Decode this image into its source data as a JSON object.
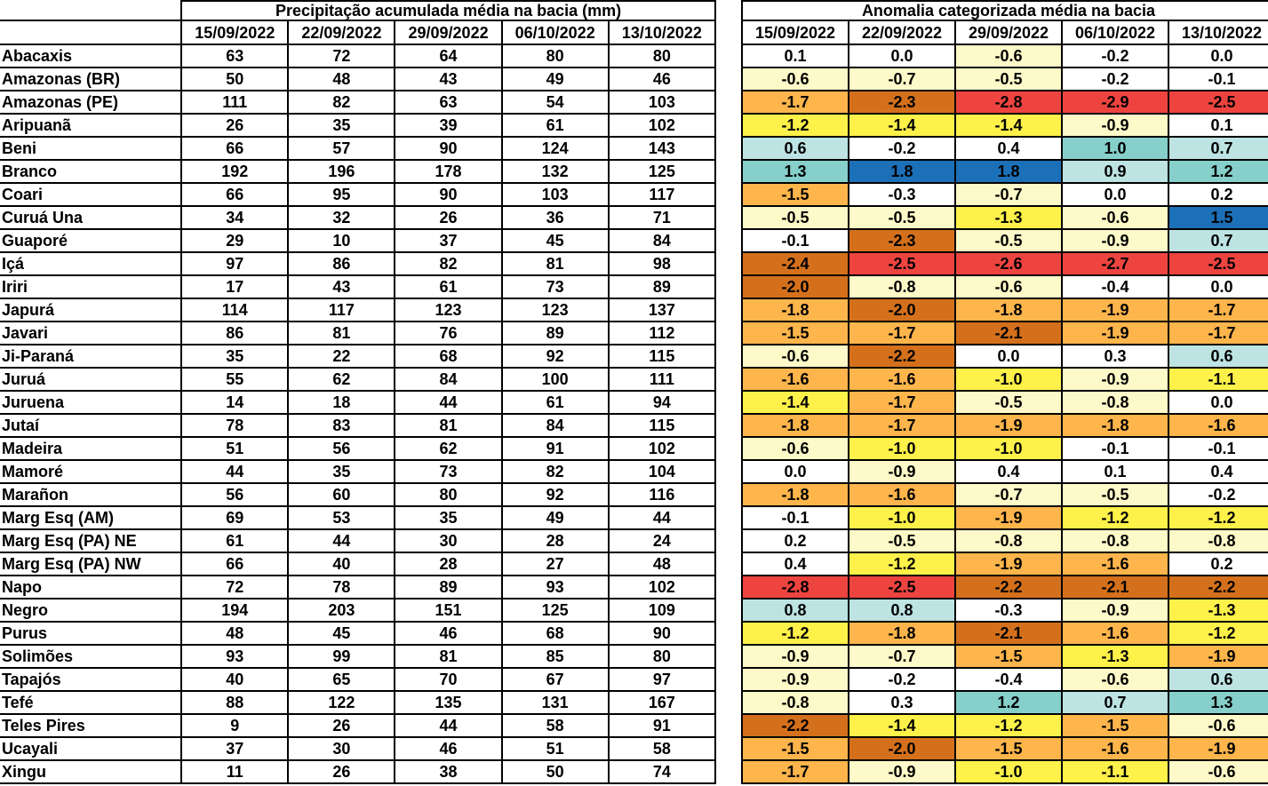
{
  "left_table": {
    "title": "Precipitação acumulada média na bacia (mm)",
    "dates": [
      "15/09/2022",
      "22/09/2022",
      "29/09/2022",
      "06/10/2022",
      "13/10/2022"
    ]
  },
  "right_table": {
    "title": "Anomalia categorizada média na bacia",
    "dates": [
      "15/09/2022",
      "22/09/2022",
      "29/09/2022",
      "06/10/2022",
      "13/10/2022"
    ]
  },
  "color_scale": {
    "dark_blue": "#1c70b8",
    "teal": "#86cfcb",
    "light_teal": "#bde3e2",
    "white": "#ffffff",
    "pale_yellow": "#fef9c8",
    "yellow": "#fef14a",
    "light_orange": "#fdb54c",
    "dark_orange": "#d4701c",
    "red": "#ee4440"
  },
  "rows": [
    {
      "name": "Abacaxis",
      "precip": [
        63,
        72,
        64,
        80,
        80
      ],
      "anom": [
        "0.1",
        "0.0",
        "-0.6",
        "-0.2",
        "0.0"
      ]
    },
    {
      "name": "Amazonas (BR)",
      "precip": [
        50,
        48,
        43,
        49,
        46
      ],
      "anom": [
        "-0.6",
        "-0.7",
        "-0.5",
        "-0.2",
        "-0.1"
      ]
    },
    {
      "name": "Amazonas (PE)",
      "precip": [
        111,
        82,
        63,
        54,
        103
      ],
      "anom": [
        "-1.7",
        "-2.3",
        "-2.8",
        "-2.9",
        "-2.5"
      ]
    },
    {
      "name": "Aripuanã",
      "precip": [
        26,
        35,
        39,
        61,
        102
      ],
      "anom": [
        "-1.2",
        "-1.4",
        "-1.4",
        "-0.9",
        "0.1"
      ]
    },
    {
      "name": "Beni",
      "precip": [
        66,
        57,
        90,
        124,
        143
      ],
      "anom": [
        "0.6",
        "-0.2",
        "0.4",
        "1.0",
        "0.7"
      ]
    },
    {
      "name": "Branco",
      "precip": [
        192,
        196,
        178,
        132,
        125
      ],
      "anom": [
        "1.3",
        "1.8",
        "1.8",
        "0.9",
        "1.2"
      ]
    },
    {
      "name": "Coari",
      "precip": [
        66,
        95,
        90,
        103,
        117
      ],
      "anom": [
        "-1.5",
        "-0.3",
        "-0.7",
        "0.0",
        "0.2"
      ]
    },
    {
      "name": "Curuá Una",
      "precip": [
        34,
        32,
        26,
        36,
        71
      ],
      "anom": [
        "-0.5",
        "-0.5",
        "-1.3",
        "-0.6",
        "1.5"
      ]
    },
    {
      "name": "Guaporé",
      "precip": [
        29,
        10,
        37,
        45,
        84
      ],
      "anom": [
        "-0.1",
        "-2.3",
        "-0.5",
        "-0.9",
        "0.7"
      ]
    },
    {
      "name": "Içá",
      "precip": [
        97,
        86,
        82,
        81,
        98
      ],
      "anom": [
        "-2.4",
        "-2.5",
        "-2.6",
        "-2.7",
        "-2.5"
      ]
    },
    {
      "name": "Iriri",
      "precip": [
        17,
        43,
        61,
        73,
        89
      ],
      "anom": [
        "-2.0",
        "-0.8",
        "-0.6",
        "-0.4",
        "0.0"
      ]
    },
    {
      "name": "Japurá",
      "precip": [
        114,
        117,
        123,
        123,
        137
      ],
      "anom": [
        "-1.8",
        "-2.0",
        "-1.8",
        "-1.9",
        "-1.7"
      ]
    },
    {
      "name": "Javari",
      "precip": [
        86,
        81,
        76,
        89,
        112
      ],
      "anom": [
        "-1.5",
        "-1.7",
        "-2.1",
        "-1.9",
        "-1.7"
      ]
    },
    {
      "name": "Ji-Paraná",
      "precip": [
        35,
        22,
        68,
        92,
        115
      ],
      "anom": [
        "-0.6",
        "-2.2",
        "0.0",
        "0.3",
        "0.6"
      ]
    },
    {
      "name": "Juruá",
      "precip": [
        55,
        62,
        84,
        100,
        111
      ],
      "anom": [
        "-1.6",
        "-1.6",
        "-1.0",
        "-0.9",
        "-1.1"
      ]
    },
    {
      "name": "Juruena",
      "precip": [
        14,
        18,
        44,
        61,
        94
      ],
      "anom": [
        "-1.4",
        "-1.7",
        "-0.5",
        "-0.8",
        "0.0"
      ]
    },
    {
      "name": "Jutaí",
      "precip": [
        78,
        83,
        81,
        84,
        115
      ],
      "anom": [
        "-1.8",
        "-1.7",
        "-1.9",
        "-1.8",
        "-1.6"
      ]
    },
    {
      "name": "Madeira",
      "precip": [
        51,
        56,
        62,
        91,
        102
      ],
      "anom": [
        "-0.6",
        "-1.0",
        "-1.0",
        "-0.1",
        "-0.1"
      ]
    },
    {
      "name": "Mamoré",
      "precip": [
        44,
        35,
        73,
        82,
        104
      ],
      "anom": [
        "0.0",
        "-0.9",
        "0.4",
        "0.1",
        "0.4"
      ]
    },
    {
      "name": "Marañon",
      "precip": [
        56,
        60,
        80,
        92,
        116
      ],
      "anom": [
        "-1.8",
        "-1.6",
        "-0.7",
        "-0.5",
        "-0.2"
      ]
    },
    {
      "name": "Marg Esq (AM)",
      "precip": [
        69,
        53,
        35,
        49,
        44
      ],
      "anom": [
        "-0.1",
        "-1.0",
        "-1.9",
        "-1.2",
        "-1.2"
      ]
    },
    {
      "name": "Marg Esq (PA) NE",
      "precip": [
        61,
        44,
        30,
        28,
        24
      ],
      "anom": [
        "0.2",
        "-0.5",
        "-0.8",
        "-0.8",
        "-0.8"
      ]
    },
    {
      "name": "Marg Esq (PA) NW",
      "precip": [
        66,
        40,
        28,
        27,
        48
      ],
      "anom": [
        "0.4",
        "-1.2",
        "-1.9",
        "-1.6",
        "0.2"
      ]
    },
    {
      "name": "Napo",
      "precip": [
        72,
        78,
        89,
        93,
        102
      ],
      "anom": [
        "-2.8",
        "-2.5",
        "-2.2",
        "-2.1",
        "-2.2"
      ]
    },
    {
      "name": "Negro",
      "precip": [
        194,
        203,
        151,
        125,
        109
      ],
      "anom": [
        "0.8",
        "0.8",
        "-0.3",
        "-0.9",
        "-1.3"
      ]
    },
    {
      "name": "Purus",
      "precip": [
        48,
        45,
        46,
        68,
        90
      ],
      "anom": [
        "-1.2",
        "-1.8",
        "-2.1",
        "-1.6",
        "-1.2"
      ]
    },
    {
      "name": "Solimões",
      "precip": [
        93,
        99,
        81,
        85,
        80
      ],
      "anom": [
        "-0.9",
        "-0.7",
        "-1.5",
        "-1.3",
        "-1.9"
      ]
    },
    {
      "name": "Tapajós",
      "precip": [
        40,
        65,
        70,
        67,
        97
      ],
      "anom": [
        "-0.9",
        "-0.2",
        "-0.4",
        "-0.6",
        "0.6"
      ]
    },
    {
      "name": "Tefé",
      "precip": [
        88,
        122,
        135,
        131,
        167
      ],
      "anom": [
        "-0.8",
        "0.3",
        "1.2",
        "0.7",
        "1.3"
      ]
    },
    {
      "name": "Teles Pires",
      "precip": [
        9,
        26,
        44,
        58,
        91
      ],
      "anom": [
        "-2.2",
        "-1.4",
        "-1.2",
        "-1.5",
        "-0.6"
      ]
    },
    {
      "name": "Ucayali",
      "precip": [
        37,
        30,
        46,
        51,
        58
      ],
      "anom": [
        "-1.5",
        "-2.0",
        "-1.5",
        "-1.6",
        "-1.9"
      ]
    },
    {
      "name": "Xingu",
      "precip": [
        11,
        26,
        38,
        50,
        74
      ],
      "anom": [
        "-1.7",
        "-0.9",
        "-1.0",
        "-1.1",
        "-0.6"
      ]
    }
  ]
}
